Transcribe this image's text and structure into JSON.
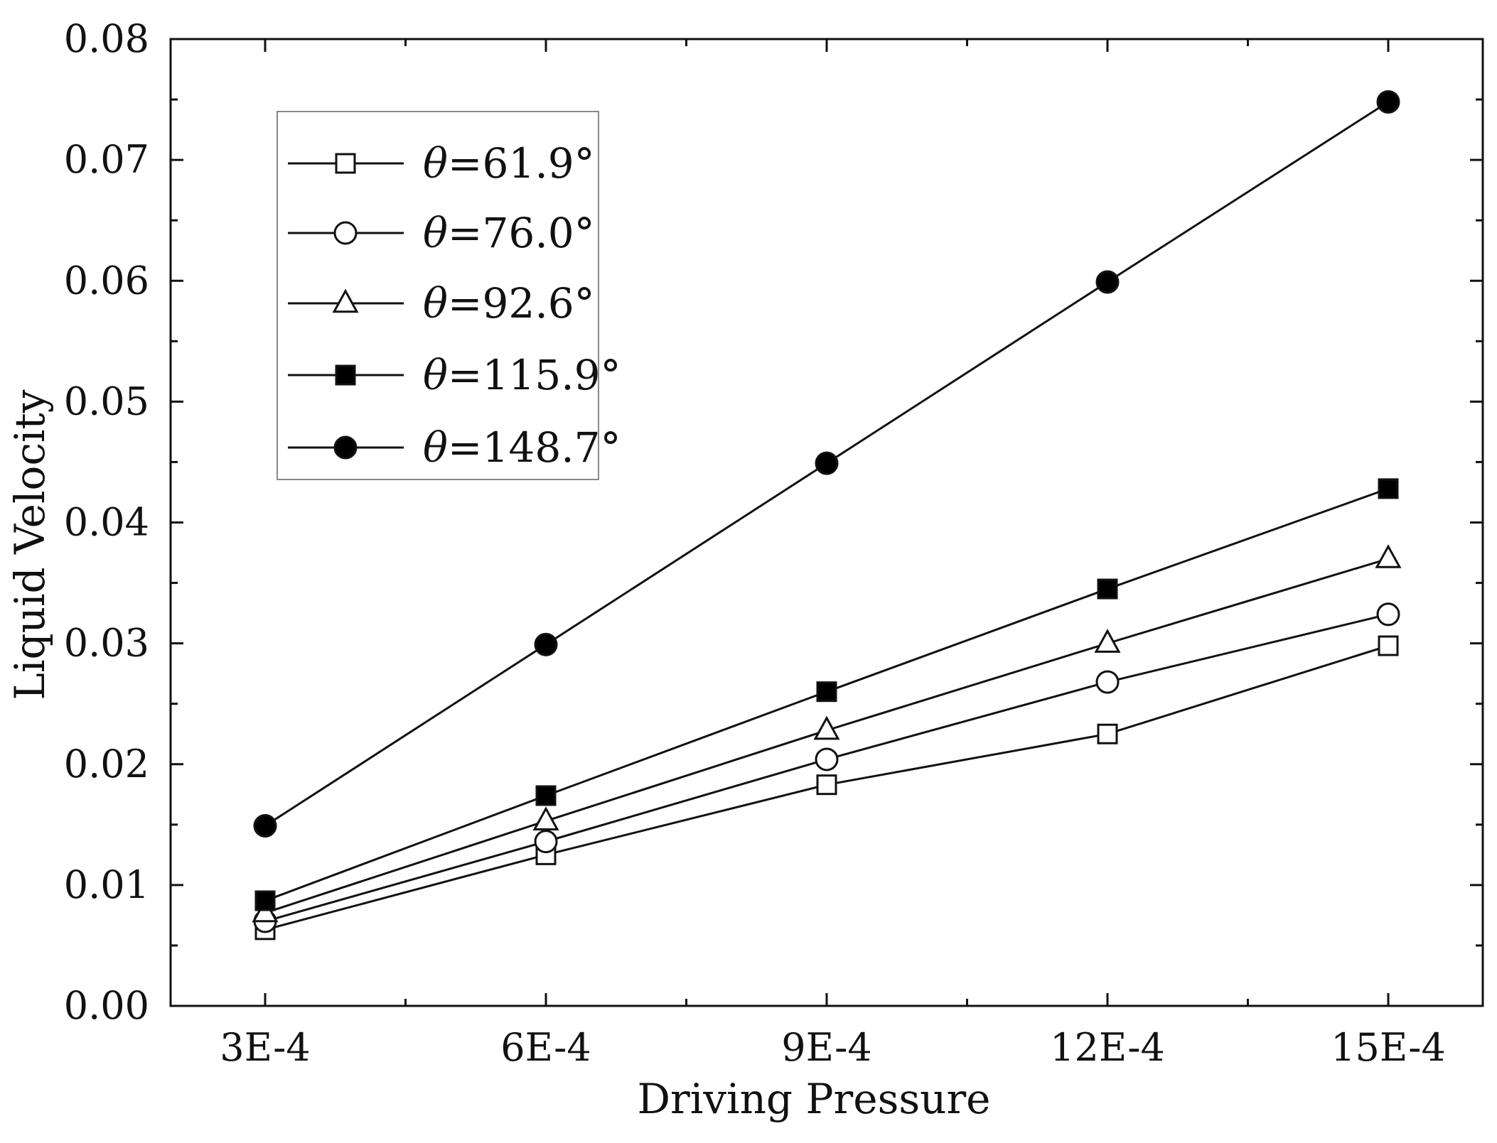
{
  "chart_data": {
    "type": "line",
    "title": "",
    "xlabel": "Driving Pressure",
    "ylabel": "Liquid Velocity",
    "categories": [
      "3E-4",
      "6E-4",
      "9E-4",
      "12E-4",
      "15E-4"
    ],
    "ylim": [
      0,
      0.08
    ],
    "yticks": [
      "0.00",
      "0.01",
      "0.02",
      "0.03",
      "0.04",
      "0.05",
      "0.06",
      "0.07",
      "0.08"
    ],
    "legend_position": "top-left",
    "grid": false,
    "series": [
      {
        "symbol": "θ",
        "name": "=61.9°",
        "marker": "square-open",
        "values": [
          0.0063,
          0.0125,
          0.0183,
          0.0225,
          0.0298
        ]
      },
      {
        "symbol": "θ",
        "name": "=76.0°",
        "marker": "circle-open",
        "values": [
          0.007,
          0.0136,
          0.0204,
          0.0268,
          0.0324
        ]
      },
      {
        "symbol": "θ",
        "name": "=92.6°",
        "marker": "triangle-open",
        "values": [
          0.0077,
          0.0153,
          0.0228,
          0.03,
          0.037
        ]
      },
      {
        "symbol": "θ",
        "name": "=115.9°",
        "marker": "square-filled",
        "values": [
          0.0087,
          0.0174,
          0.026,
          0.0345,
          0.0428
        ]
      },
      {
        "symbol": "θ",
        "name": "=148.7°",
        "marker": "circle-filled",
        "values": [
          0.0149,
          0.0299,
          0.0449,
          0.0599,
          0.0748
        ]
      }
    ]
  }
}
